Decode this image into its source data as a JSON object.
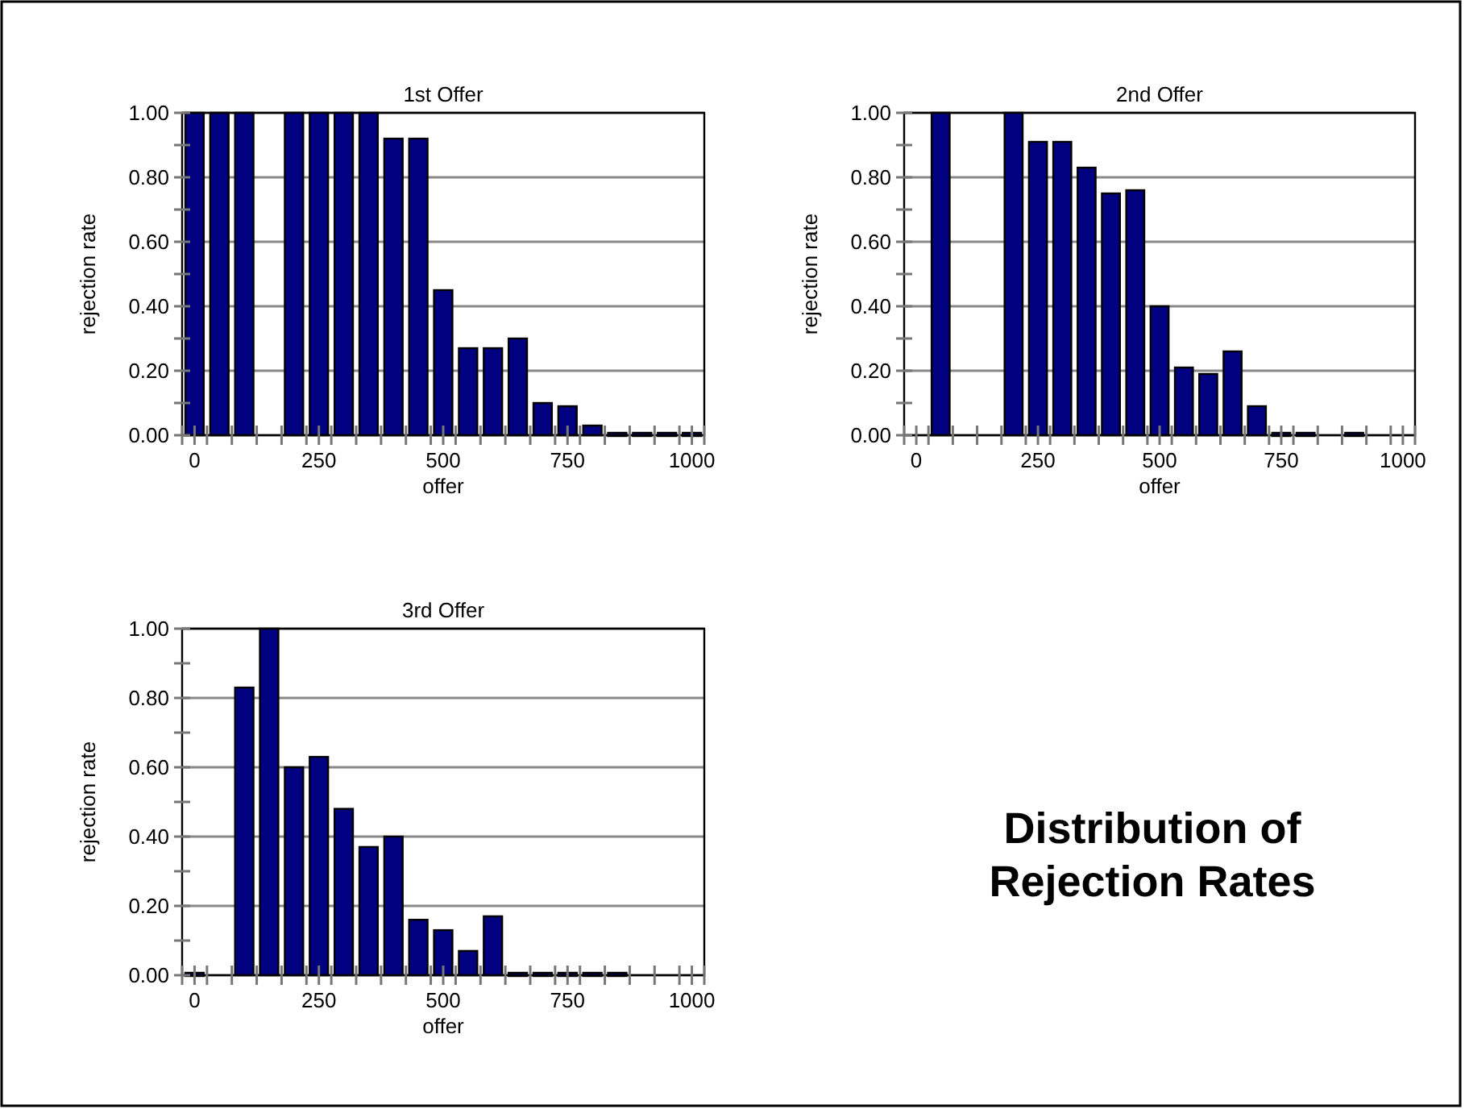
{
  "chart_data": [
    {
      "type": "histogram",
      "title": "1st Offer",
      "xlabel": "offer",
      "ylabel": "rejection rate",
      "color": "#000080",
      "bins": [
        -25,
        25,
        75,
        125,
        175,
        225,
        275,
        325,
        375,
        425,
        475,
        525,
        575,
        625,
        675,
        725,
        775,
        825,
        875,
        925,
        975,
        1025
      ],
      "values": [
        1,
        1,
        1,
        null,
        1,
        1,
        1,
        1,
        0.92,
        0.92,
        0.45,
        0.27,
        0.27,
        0.3,
        0.1,
        0.09,
        0.03,
        0,
        0,
        0,
        0
      ],
      "xlim": [
        -25,
        1025
      ],
      "xticks": [
        0,
        250,
        500,
        750,
        1000
      ],
      "ylim": [
        0,
        1
      ],
      "yticks": [
        {
          "value": 0,
          "label": "0.00"
        },
        {
          "value": 0.1,
          "label": null
        },
        {
          "value": 0.2,
          "label": "0.20"
        },
        {
          "value": 0.3,
          "label": null
        },
        {
          "value": 0.4,
          "label": "0.40"
        },
        {
          "value": 0.5,
          "label": null
        },
        {
          "value": 0.6,
          "label": "0.60"
        },
        {
          "value": 0.7,
          "label": null
        },
        {
          "value": 0.8,
          "label": "0.80"
        },
        {
          "value": 0.9,
          "label": null
        },
        {
          "value": 1,
          "label": "1.00"
        }
      ],
      "grid": "y"
    },
    {
      "type": "histogram",
      "title": "2nd Offer",
      "xlabel": "offer",
      "ylabel": "rejection rate",
      "color": "#000080",
      "bins": [
        -25,
        25,
        75,
        125,
        175,
        225,
        275,
        325,
        375,
        425,
        475,
        525,
        575,
        625,
        675,
        725,
        775,
        825,
        875,
        925,
        975,
        1025
      ],
      "values": [
        null,
        1,
        null,
        null,
        1,
        0.91,
        0.91,
        0.83,
        0.75,
        0.76,
        0.4,
        0.21,
        0.19,
        0.26,
        0.09,
        0,
        0,
        null,
        0,
        null,
        null
      ],
      "xlim": [
        -25,
        1025
      ],
      "xticks": [
        0,
        250,
        500,
        750,
        1000
      ],
      "ylim": [
        0,
        1
      ],
      "yticks": [
        {
          "value": 0,
          "label": "0.00"
        },
        {
          "value": 0.1,
          "label": null
        },
        {
          "value": 0.2,
          "label": "0.20"
        },
        {
          "value": 0.3,
          "label": null
        },
        {
          "value": 0.4,
          "label": "0.40"
        },
        {
          "value": 0.5,
          "label": null
        },
        {
          "value": 0.6,
          "label": "0.60"
        },
        {
          "value": 0.7,
          "label": null
        },
        {
          "value": 0.8,
          "label": "0.80"
        },
        {
          "value": 0.9,
          "label": null
        },
        {
          "value": 1,
          "label": "1.00"
        }
      ],
      "grid": "y"
    },
    {
      "type": "histogram",
      "title": "3rd Offer",
      "xlabel": "offer",
      "ylabel": "rejection rate",
      "color": "#000080",
      "bins": [
        -25,
        25,
        75,
        125,
        175,
        225,
        275,
        325,
        375,
        425,
        475,
        525,
        575,
        625,
        675,
        725,
        775,
        825,
        875,
        925,
        975,
        1025
      ],
      "values": [
        0,
        null,
        0.83,
        1,
        0.6,
        0.63,
        0.48,
        0.37,
        0.4,
        0.16,
        0.13,
        0.07,
        0.17,
        0,
        0,
        0,
        0,
        0,
        null,
        null,
        null
      ],
      "xlim": [
        -25,
        1025
      ],
      "xticks": [
        0,
        250,
        500,
        750,
        1000
      ],
      "ylim": [
        0,
        1
      ],
      "yticks": [
        {
          "value": 0,
          "label": "0.00"
        },
        {
          "value": 0.1,
          "label": null
        },
        {
          "value": 0.2,
          "label": "0.20"
        },
        {
          "value": 0.3,
          "label": null
        },
        {
          "value": 0.4,
          "label": "0.40"
        },
        {
          "value": 0.5,
          "label": null
        },
        {
          "value": 0.6,
          "label": "0.60"
        },
        {
          "value": 0.7,
          "label": null
        },
        {
          "value": 0.8,
          "label": "0.80"
        },
        {
          "value": 0.9,
          "label": null
        },
        {
          "value": 1,
          "label": "1.00"
        }
      ],
      "grid": "y"
    },
    {
      "type": "other",
      "title": "Distribution of Rejection Rates"
    }
  ]
}
